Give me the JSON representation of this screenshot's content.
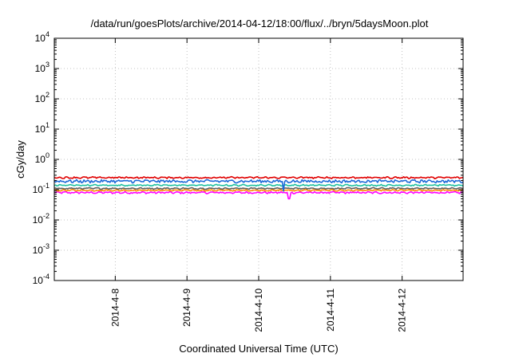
{
  "chart_data": {
    "type": "line",
    "title": "/data/run/goesPlots/archive/2014-04-12/18:00/flux/../bryn/5daysMoon.plot",
    "xlabel": "Coordinated Universal Time (UTC)",
    "ylabel": "cGy/day",
    "yscale": "log",
    "ylim_exponents": [
      -4,
      4
    ],
    "y_tick_exponents": [
      -4,
      -3,
      -2,
      -1,
      0,
      1,
      2,
      3,
      4
    ],
    "y_tick_base": "10",
    "xlim_days": [
      7.15,
      12.85
    ],
    "x_ticks": [
      {
        "day": 8,
        "label": "2014-4-8"
      },
      {
        "day": 9,
        "label": "2014-4-9"
      },
      {
        "day": 10,
        "label": "2014-4-10"
      },
      {
        "day": 11,
        "label": "2014-4-11"
      },
      {
        "day": 12,
        "label": "2014-4-12"
      }
    ],
    "grid": true,
    "series": [
      {
        "color": "#ff00ff",
        "base_value": 0.08,
        "noise": 0.06,
        "dip_at_day": 10.42,
        "dip_value": 0.05
      },
      {
        "color": "#ff8c00",
        "base_value": 0.095,
        "noise": 0.04
      },
      {
        "color": "#606060",
        "base_value": 0.11,
        "noise": 0.04
      },
      {
        "color": "#20c0a0",
        "base_value": 0.14,
        "noise": 0.04
      },
      {
        "color": "#1e6ad8",
        "base_value": 0.19,
        "noise": 0.1,
        "dip_at_day": 10.35,
        "dip_value": 0.09
      },
      {
        "color": "#e00000",
        "base_value": 0.25,
        "noise": 0.05
      }
    ]
  }
}
